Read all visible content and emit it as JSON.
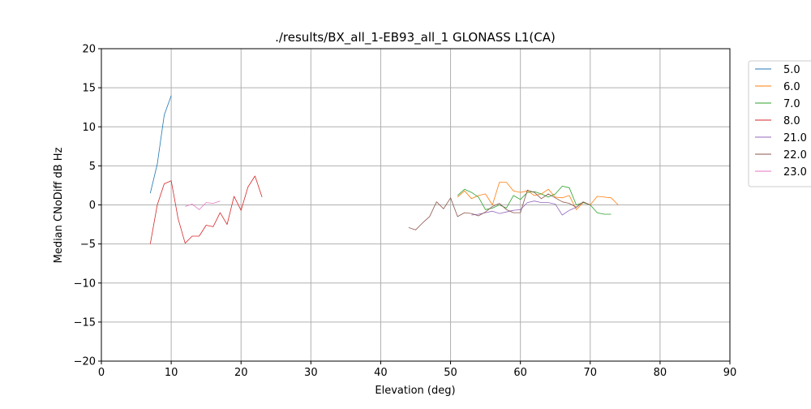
{
  "chart_data": {
    "type": "line",
    "title": "./results/BX_all_1-EB93_all_1 GLONASS L1(CA)",
    "xlabel": "Elevation (deg)",
    "ylabel": "Median CNoDiff dB Hz",
    "xlim": [
      0,
      90
    ],
    "ylim": [
      -20,
      20
    ],
    "xticks": [
      0,
      10,
      20,
      30,
      40,
      50,
      60,
      70,
      80,
      90
    ],
    "yticks": [
      -20,
      -15,
      -10,
      -5,
      0,
      5,
      10,
      15,
      20
    ],
    "grid": true,
    "legend_position": "outside-top-right",
    "series": [
      {
        "name": "5.0",
        "color": "#1f77b4",
        "x": [
          7,
          8,
          9,
          10
        ],
        "y": [
          1.5,
          5.2,
          11.5,
          14.0
        ]
      },
      {
        "name": "6.0",
        "color": "#ff7f0e",
        "x": [
          51,
          52,
          53,
          54,
          55,
          56,
          57,
          58,
          59,
          60,
          61,
          62,
          63,
          64,
          65,
          66,
          67,
          68,
          69,
          70,
          71,
          72,
          73,
          74
        ],
        "y": [
          1.0,
          1.8,
          0.8,
          1.2,
          1.4,
          0.0,
          2.9,
          2.9,
          1.8,
          1.6,
          1.8,
          1.2,
          1.4,
          2.0,
          1.0,
          0.9,
          1.2,
          -0.6,
          0.3,
          0.0,
          1.1,
          1.0,
          0.9,
          0.0
        ]
      },
      {
        "name": "7.0",
        "color": "#2ca02c",
        "x": [
          51,
          52,
          53,
          54,
          55,
          56,
          57,
          58,
          59,
          60,
          61,
          62,
          63,
          64,
          65,
          66,
          67,
          68,
          69,
          70,
          71,
          72,
          73
        ],
        "y": [
          1.2,
          2.0,
          1.6,
          1.0,
          -0.6,
          -0.4,
          0.0,
          -0.4,
          1.2,
          0.7,
          1.6,
          1.7,
          1.4,
          1.0,
          1.4,
          2.4,
          2.2,
          0.0,
          0.3,
          0.0,
          -1.0,
          -1.2,
          -1.2
        ]
      },
      {
        "name": "8.0",
        "color": "#d62728",
        "x": [
          7,
          8,
          9,
          10,
          11,
          12,
          13,
          14,
          15,
          16,
          17,
          18,
          19,
          20,
          21,
          22,
          23
        ],
        "y": [
          -5.0,
          0.0,
          2.7,
          3.1,
          -1.8,
          -4.9,
          -4.0,
          -4.0,
          -2.6,
          -2.8,
          -1.0,
          -2.5,
          1.1,
          -0.7,
          2.3,
          3.7,
          1.0
        ]
      },
      {
        "name": "21.0",
        "color": "#9467bd",
        "x": [
          53,
          54,
          55,
          56,
          57,
          58,
          59,
          60,
          61,
          62,
          63,
          64,
          65,
          66,
          67,
          68,
          69
        ],
        "y": [
          -1.3,
          -1.2,
          -1.0,
          -0.8,
          -1.1,
          -0.9,
          -0.7,
          -0.6,
          0.3,
          0.5,
          0.3,
          0.3,
          0.1,
          -1.3,
          -0.7,
          -0.3,
          0.4
        ]
      },
      {
        "name": "22.0",
        "color": "#8c564b",
        "x": [
          44,
          45,
          46,
          47,
          48,
          49,
          50,
          51,
          52,
          53,
          54,
          55,
          56,
          57,
          58,
          59,
          60,
          61,
          62,
          63,
          64,
          65,
          66,
          67,
          68,
          69,
          70
        ],
        "y": [
          -2.9,
          -3.2,
          -2.3,
          -1.5,
          0.4,
          -0.5,
          0.9,
          -1.5,
          -1.0,
          -1.1,
          -1.4,
          -0.9,
          -0.2,
          0.2,
          -0.6,
          -1.0,
          -1.0,
          1.9,
          1.6,
          0.8,
          1.4,
          0.9,
          0.4,
          0.2,
          -0.3,
          0.4,
          0.0
        ]
      },
      {
        "name": "23.0",
        "color": "#e377c2",
        "x": [
          12,
          13,
          14,
          15,
          16,
          17
        ],
        "y": [
          -0.2,
          0.1,
          -0.6,
          0.3,
          0.2,
          0.5
        ]
      }
    ]
  }
}
